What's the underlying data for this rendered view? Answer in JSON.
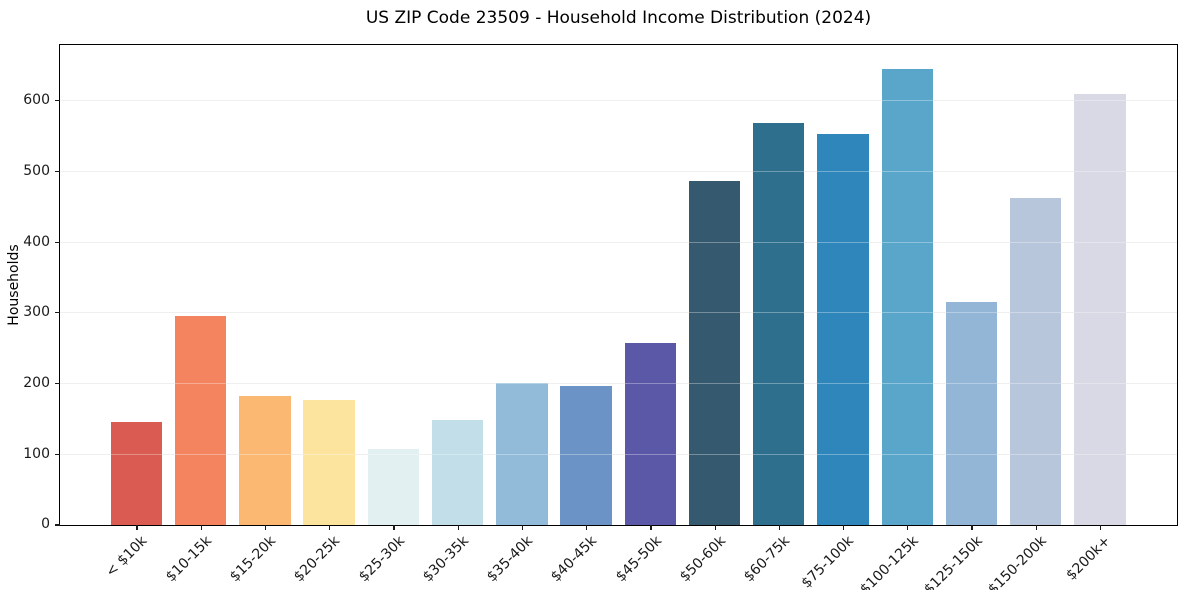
{
  "chart_data": {
    "type": "bar",
    "title": "US ZIP Code 23509 - Household Income Distribution (2024)",
    "xlabel": "",
    "ylabel": "Households",
    "categories": [
      "< $10k",
      "$10-15k",
      "$15-20k",
      "$20-25k",
      "$25-30k",
      "$30-35k",
      "$35-40k",
      "$40-45k",
      "$45-50k",
      "$50-60k",
      "$60-75k",
      "$75-100k",
      "$100-125k",
      "$125-150k",
      "$150-200k",
      "$200k+"
    ],
    "values": [
      146,
      295,
      182,
      177,
      108,
      148,
      201,
      197,
      257,
      486,
      568,
      553,
      645,
      316,
      463,
      610
    ],
    "bar_colors": [
      "#d95b52",
      "#f3845f",
      "#fab873",
      "#fce39e",
      "#e3f0f2",
      "#c2dfe9",
      "#92bbd9",
      "#6c93c5",
      "#5a58a7",
      "#35596e",
      "#2f6f8e",
      "#2f86ba",
      "#5aa5ca",
      "#93b6d7",
      "#b8c6dc",
      "#d8d9e4"
    ],
    "ylim": [
      0,
      678
    ],
    "yticks": [
      0,
      100,
      200,
      300,
      400,
      500,
      600
    ],
    "grid": "horizontal",
    "legend": "none",
    "background_color": "#ffffff",
    "gridline_color": "#e7e7e7",
    "spine_color": "#000000",
    "tick_color": "#1a1a1a"
  }
}
